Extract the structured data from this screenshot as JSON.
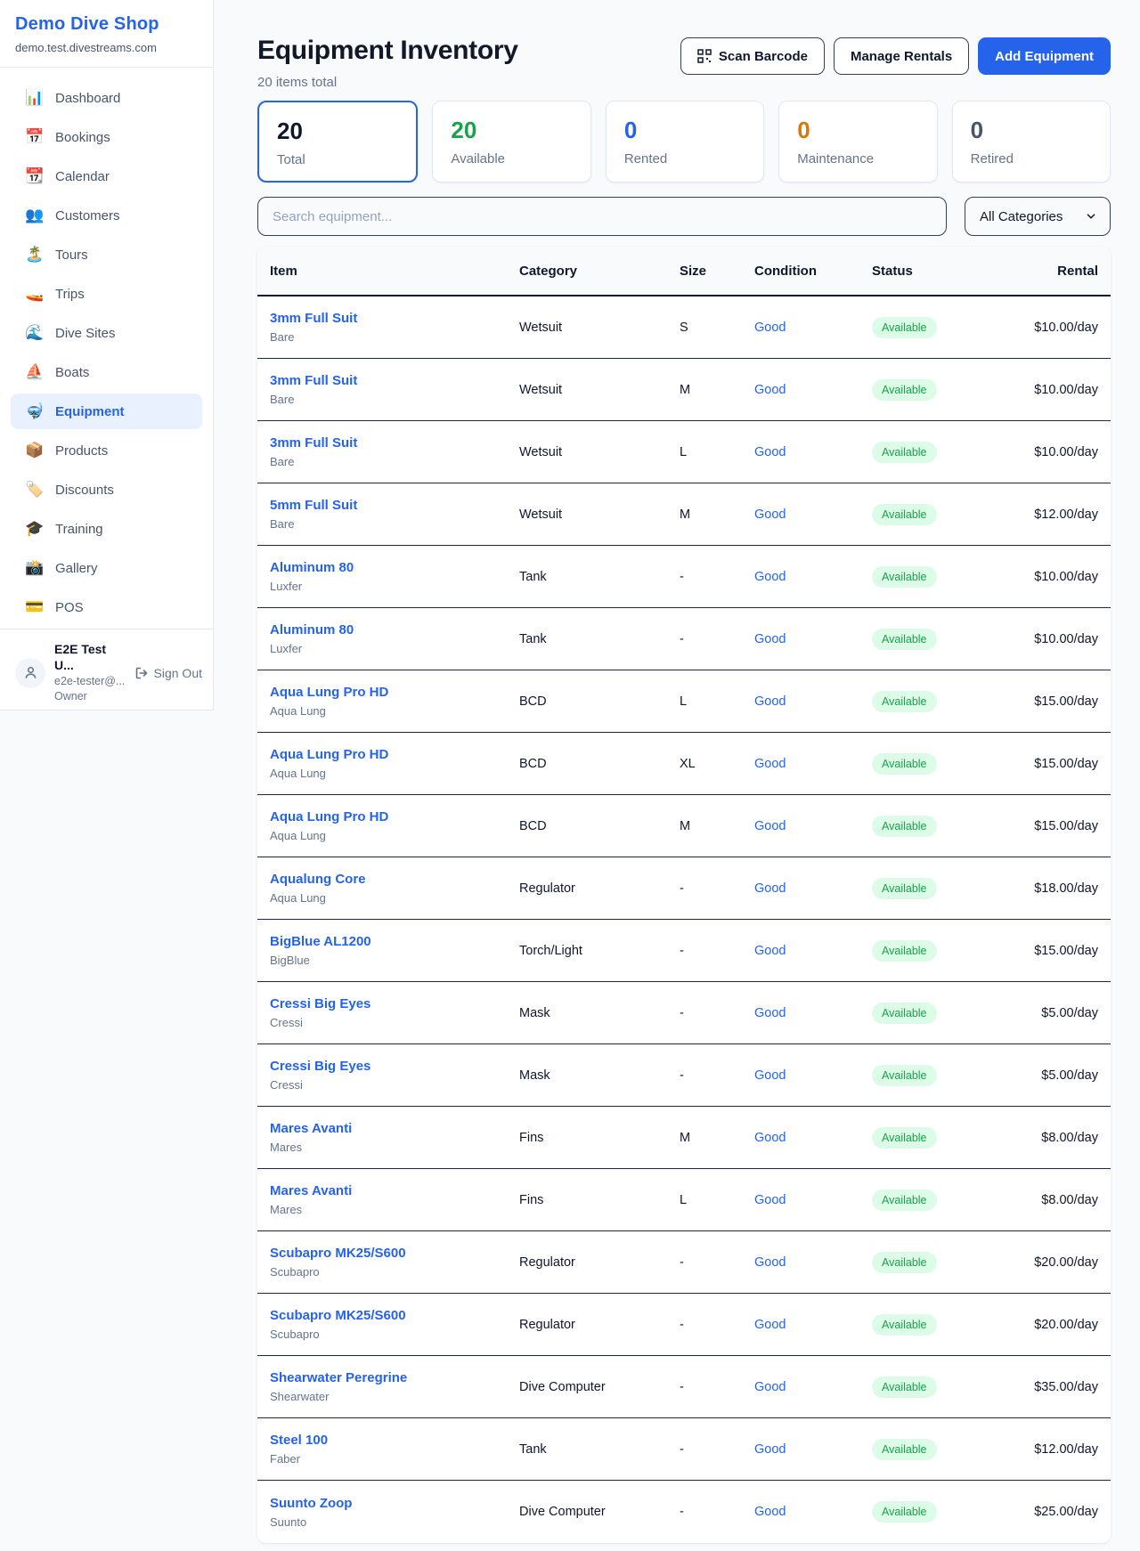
{
  "sidebar": {
    "brand": {
      "name": "Demo Dive Shop",
      "domain": "demo.test.divestreams.com"
    },
    "nav": [
      {
        "key": "dashboard",
        "icon": "📊",
        "label": "Dashboard",
        "active": false
      },
      {
        "key": "bookings",
        "icon": "📅",
        "label": "Bookings",
        "active": false
      },
      {
        "key": "calendar",
        "icon": "📆",
        "label": "Calendar",
        "active": false
      },
      {
        "key": "customers",
        "icon": "👥",
        "label": "Customers",
        "active": false
      },
      {
        "key": "tours",
        "icon": "🏝️",
        "label": "Tours",
        "active": false
      },
      {
        "key": "trips",
        "icon": "🚤",
        "label": "Trips",
        "active": false
      },
      {
        "key": "dive-sites",
        "icon": "🌊",
        "label": "Dive Sites",
        "active": false
      },
      {
        "key": "boats",
        "icon": "⛵",
        "label": "Boats",
        "active": false
      },
      {
        "key": "equipment",
        "icon": "🤿",
        "label": "Equipment",
        "active": true
      },
      {
        "key": "products",
        "icon": "📦",
        "label": "Products",
        "active": false
      },
      {
        "key": "discounts",
        "icon": "🏷️",
        "label": "Discounts",
        "active": false
      },
      {
        "key": "training",
        "icon": "🎓",
        "label": "Training",
        "active": false
      },
      {
        "key": "gallery",
        "icon": "📸",
        "label": "Gallery",
        "active": false
      },
      {
        "key": "pos",
        "icon": "💳",
        "label": "POS",
        "active": false
      }
    ],
    "user": {
      "name": "E2E Test U...",
      "email": "e2e-tester@...",
      "role": "Owner",
      "sign_out": "Sign Out"
    }
  },
  "header": {
    "title": "Equipment Inventory",
    "subtitle": "20 items total",
    "scan_label": "Scan Barcode",
    "manage_label": "Manage Rentals",
    "add_label": "Add Equipment"
  },
  "stats": [
    {
      "key": "total",
      "value": "20",
      "label": "Total",
      "color": "#0f172a",
      "selected": true
    },
    {
      "key": "available",
      "value": "20",
      "label": "Available",
      "color": "#16a34a",
      "selected": false
    },
    {
      "key": "rented",
      "value": "0",
      "label": "Rented",
      "color": "#2563eb",
      "selected": false
    },
    {
      "key": "maintenance",
      "value": "0",
      "label": "Maintenance",
      "color": "#d97706",
      "selected": false
    },
    {
      "key": "retired",
      "value": "0",
      "label": "Retired",
      "color": "#475569",
      "selected": false
    }
  ],
  "filters": {
    "search_placeholder": "Search equipment...",
    "category_selected": "All Categories"
  },
  "table": {
    "columns": [
      "Item",
      "Category",
      "Size",
      "Condition",
      "Status",
      "Rental"
    ],
    "rows": [
      {
        "name": "3mm Full Suit",
        "brand": "Bare",
        "category": "Wetsuit",
        "size": "S",
        "condition": "Good",
        "status": "Available",
        "rental": "$10.00/day"
      },
      {
        "name": "3mm Full Suit",
        "brand": "Bare",
        "category": "Wetsuit",
        "size": "M",
        "condition": "Good",
        "status": "Available",
        "rental": "$10.00/day"
      },
      {
        "name": "3mm Full Suit",
        "brand": "Bare",
        "category": "Wetsuit",
        "size": "L",
        "condition": "Good",
        "status": "Available",
        "rental": "$10.00/day"
      },
      {
        "name": "5mm Full Suit",
        "brand": "Bare",
        "category": "Wetsuit",
        "size": "M",
        "condition": "Good",
        "status": "Available",
        "rental": "$12.00/day"
      },
      {
        "name": "Aluminum 80",
        "brand": "Luxfer",
        "category": "Tank",
        "size": "-",
        "condition": "Good",
        "status": "Available",
        "rental": "$10.00/day"
      },
      {
        "name": "Aluminum 80",
        "brand": "Luxfer",
        "category": "Tank",
        "size": "-",
        "condition": "Good",
        "status": "Available",
        "rental": "$10.00/day"
      },
      {
        "name": "Aqua Lung Pro HD",
        "brand": "Aqua Lung",
        "category": "BCD",
        "size": "L",
        "condition": "Good",
        "status": "Available",
        "rental": "$15.00/day"
      },
      {
        "name": "Aqua Lung Pro HD",
        "brand": "Aqua Lung",
        "category": "BCD",
        "size": "XL",
        "condition": "Good",
        "status": "Available",
        "rental": "$15.00/day"
      },
      {
        "name": "Aqua Lung Pro HD",
        "brand": "Aqua Lung",
        "category": "BCD",
        "size": "M",
        "condition": "Good",
        "status": "Available",
        "rental": "$15.00/day"
      },
      {
        "name": "Aqualung Core",
        "brand": "Aqua Lung",
        "category": "Regulator",
        "size": "-",
        "condition": "Good",
        "status": "Available",
        "rental": "$18.00/day"
      },
      {
        "name": "BigBlue AL1200",
        "brand": "BigBlue",
        "category": "Torch/Light",
        "size": "-",
        "condition": "Good",
        "status": "Available",
        "rental": "$15.00/day"
      },
      {
        "name": "Cressi Big Eyes",
        "brand": "Cressi",
        "category": "Mask",
        "size": "-",
        "condition": "Good",
        "status": "Available",
        "rental": "$5.00/day"
      },
      {
        "name": "Cressi Big Eyes",
        "brand": "Cressi",
        "category": "Mask",
        "size": "-",
        "condition": "Good",
        "status": "Available",
        "rental": "$5.00/day"
      },
      {
        "name": "Mares Avanti",
        "brand": "Mares",
        "category": "Fins",
        "size": "M",
        "condition": "Good",
        "status": "Available",
        "rental": "$8.00/day"
      },
      {
        "name": "Mares Avanti",
        "brand": "Mares",
        "category": "Fins",
        "size": "L",
        "condition": "Good",
        "status": "Available",
        "rental": "$8.00/day"
      },
      {
        "name": "Scubapro MK25/S600",
        "brand": "Scubapro",
        "category": "Regulator",
        "size": "-",
        "condition": "Good",
        "status": "Available",
        "rental": "$20.00/day"
      },
      {
        "name": "Scubapro MK25/S600",
        "brand": "Scubapro",
        "category": "Regulator",
        "size": "-",
        "condition": "Good",
        "status": "Available",
        "rental": "$20.00/day"
      },
      {
        "name": "Shearwater Peregrine",
        "brand": "Shearwater",
        "category": "Dive Computer",
        "size": "-",
        "condition": "Good",
        "status": "Available",
        "rental": "$35.00/day"
      },
      {
        "name": "Steel 100",
        "brand": "Faber",
        "category": "Tank",
        "size": "-",
        "condition": "Good",
        "status": "Available",
        "rental": "$12.00/day"
      },
      {
        "name": "Suunto Zoop",
        "brand": "Suunto",
        "category": "Dive Computer",
        "size": "-",
        "condition": "Good",
        "status": "Available",
        "rental": "$25.00/day"
      }
    ]
  },
  "colors": {
    "accent_blue": "#2563eb",
    "available_green": "#16a34a",
    "badge_bg": "#dcfce7",
    "maintenance_orange": "#d97706",
    "retired_gray": "#475569"
  }
}
